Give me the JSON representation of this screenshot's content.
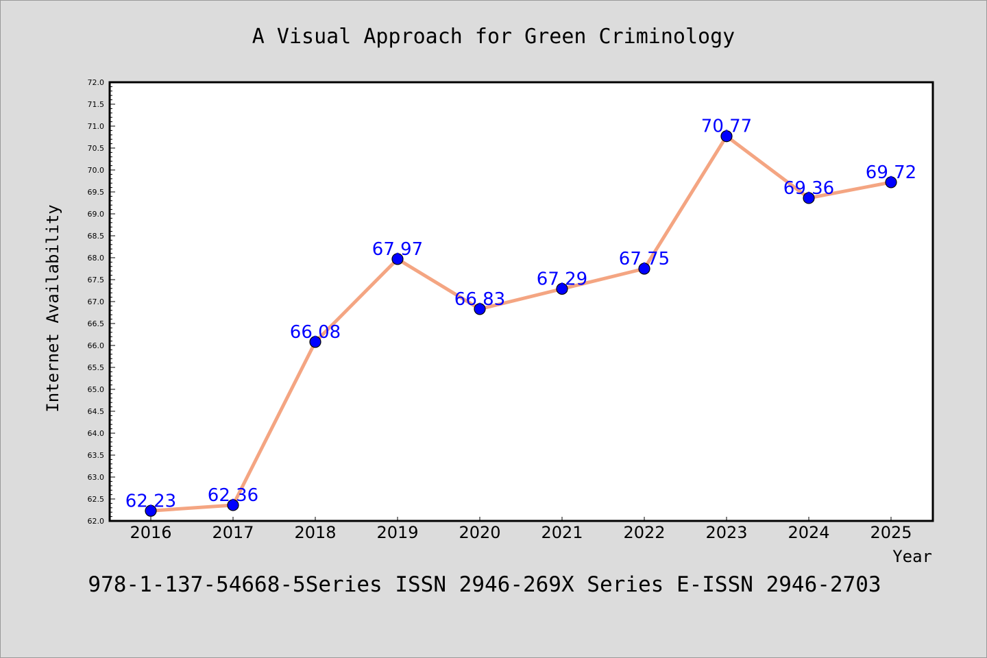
{
  "chart_data": {
    "type": "line",
    "title": "A Visual Approach for Green Criminology",
    "xlabel": "Year",
    "ylabel": "Internet Availability",
    "categories": [
      "2016",
      "2017",
      "2018",
      "2019",
      "2020",
      "2021",
      "2022",
      "2023",
      "2024",
      "2025"
    ],
    "series": [
      {
        "values": [
          62.23,
          62.36,
          66.08,
          67.97,
          66.83,
          67.29,
          67.75,
          70.77,
          69.36,
          69.72
        ],
        "labels": [
          "62.23",
          "62.36",
          "66.08",
          "67.97",
          "66.83",
          "67.29",
          "67.75",
          "70.77",
          "69.36",
          "69.72"
        ],
        "line_color": "#f4a582",
        "marker_color": "#0000ff"
      }
    ],
    "ylim": [
      62.0,
      72.0
    ],
    "y_ticks": [
      "62.0",
      "62.5",
      "63.0",
      "63.5",
      "64.0",
      "64.5",
      "65.0",
      "65.5",
      "66.0",
      "66.5",
      "67.0",
      "67.5",
      "68.0",
      "68.5",
      "69.0",
      "69.5",
      "70.0",
      "70.5",
      "71.0",
      "71.5",
      "72.0"
    ],
    "grid": false,
    "legend": "none"
  },
  "footer": "978-1-137-54668-5Series ISSN 2946-269X Series E-ISSN 2946-2703"
}
